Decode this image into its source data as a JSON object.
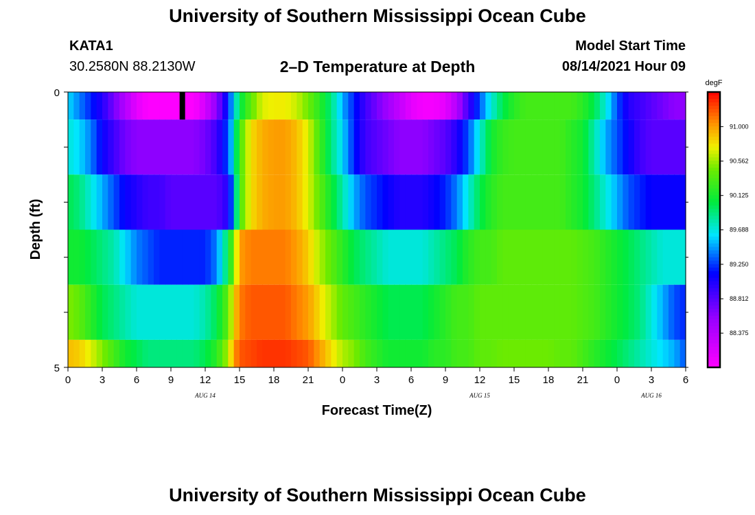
{
  "header": {
    "title": "University of Southern Mississippi Ocean Cube",
    "station_id": "KATA1",
    "coords": "30.2580N  88.2130W",
    "plot_title": "2–D Temperature at Depth",
    "model_start_label": "Model Start Time",
    "model_start_value": "08/14/2021 Hour 09"
  },
  "footer": {
    "title": "University of Southern Mississippi Ocean Cube"
  },
  "chart_data": {
    "type": "heatmap",
    "title": "2–D Temperature at Depth",
    "xlabel": "Forecast Time(Z)",
    "ylabel": "Depth (ft)",
    "xlim": [
      0,
      54
    ],
    "ylim": [
      0,
      5
    ],
    "x_tick_labels": [
      "0",
      "3",
      "6",
      "9",
      "12",
      "15",
      "18",
      "21",
      "0",
      "3",
      "6",
      "9",
      "12",
      "15",
      "18",
      "21",
      "0",
      "3",
      "6"
    ],
    "y_tick_labels": [
      "0",
      "5"
    ],
    "date_labels": [
      {
        "text": "AUG 14",
        "hour": 12
      },
      {
        "text": "AUG 15",
        "hour": 36
      },
      {
        "text": "AUG 16",
        "hour": 51
      }
    ],
    "colorbar": {
      "unit": "degF",
      "ticks": [
        91.0,
        90.562,
        90.125,
        89.688,
        89.25,
        88.812,
        88.375
      ],
      "tick_labels": [
        "91.000",
        "90.562",
        "90.125",
        "89.688",
        "89.250",
        "88.812",
        "88.375"
      ],
      "range": [
        87.94,
        91.44
      ]
    },
    "missing_marker": {
      "hour": 10,
      "layer": 0
    },
    "layers": [
      {
        "depth_range": [
          0,
          0.5
        ],
        "x": [
          0,
          1,
          2,
          3,
          4,
          5,
          6,
          7,
          8,
          9,
          10,
          11,
          12,
          13,
          14,
          14.5,
          15,
          16,
          17,
          18,
          19,
          20,
          21,
          22,
          23,
          24,
          25,
          26,
          27,
          28,
          29,
          30,
          31,
          32,
          33,
          34,
          35,
          36,
          37,
          38,
          39,
          40,
          41,
          42,
          43,
          44,
          45,
          46,
          47,
          48,
          49,
          50,
          51,
          52,
          53,
          54
        ],
        "values": [
          89.6,
          89.4,
          89.2,
          89.0,
          88.7,
          88.4,
          88.1,
          87.95,
          87.95,
          87.95,
          87.95,
          87.95,
          88.2,
          88.6,
          89.2,
          89.6,
          90.0,
          90.4,
          90.7,
          90.75,
          90.75,
          90.65,
          90.45,
          90.2,
          89.9,
          89.5,
          89.2,
          88.9,
          88.7,
          88.5,
          88.3,
          88.1,
          88.0,
          88.0,
          88.1,
          88.4,
          88.9,
          89.3,
          89.7,
          90.0,
          90.2,
          90.3,
          90.3,
          90.3,
          90.3,
          90.3,
          90.2,
          90.0,
          89.7,
          89.3,
          89.0,
          88.9,
          88.8,
          88.7,
          88.6,
          88.6
        ]
      },
      {
        "depth_range": [
          0.5,
          1.5
        ],
        "x": [
          0,
          1,
          2,
          3,
          4,
          5,
          6,
          7,
          8,
          9,
          10,
          11,
          12,
          13,
          14,
          14.5,
          15,
          16,
          17,
          18,
          19,
          20,
          21,
          22,
          23,
          24,
          25,
          26,
          27,
          28,
          29,
          30,
          31,
          32,
          33,
          34,
          35,
          36,
          37,
          38,
          39,
          40,
          41,
          42,
          43,
          44,
          45,
          46,
          47,
          48,
          49,
          50,
          51,
          52,
          53,
          54
        ],
        "values": [
          89.7,
          89.6,
          89.4,
          89.1,
          88.9,
          88.7,
          88.6,
          88.6,
          88.6,
          88.6,
          88.6,
          88.6,
          88.7,
          88.9,
          89.3,
          89.7,
          90.3,
          90.8,
          90.95,
          91.0,
          91.0,
          90.9,
          90.7,
          90.3,
          89.9,
          89.6,
          89.2,
          88.9,
          88.8,
          88.7,
          88.6,
          88.6,
          88.6,
          88.7,
          88.8,
          89.0,
          89.3,
          89.7,
          90.1,
          90.25,
          90.3,
          90.3,
          90.3,
          90.3,
          90.3,
          90.2,
          90.1,
          89.8,
          89.5,
          89.3,
          89.1,
          88.9,
          88.8,
          88.8,
          88.8,
          88.8
        ]
      },
      {
        "depth_range": [
          1.5,
          2.5
        ],
        "x": [
          0,
          1,
          2,
          3,
          4,
          5,
          6,
          7,
          8,
          9,
          10,
          11,
          12,
          13,
          14,
          14.5,
          15,
          16,
          17,
          18,
          19,
          20,
          21,
          22,
          23,
          24,
          25,
          26,
          27,
          28,
          29,
          30,
          31,
          32,
          33,
          34,
          35,
          36,
          37,
          38,
          39,
          40,
          41,
          42,
          43,
          44,
          45,
          46,
          47,
          48,
          49,
          50,
          51,
          52,
          53,
          54
        ],
        "values": [
          90.0,
          89.9,
          89.7,
          89.5,
          89.3,
          89.1,
          89.0,
          88.9,
          88.9,
          88.8,
          88.8,
          88.8,
          88.8,
          88.8,
          89.0,
          89.5,
          90.3,
          90.8,
          90.95,
          91.0,
          91.0,
          90.9,
          90.7,
          90.4,
          90.1,
          89.8,
          89.5,
          89.3,
          89.2,
          89.1,
          89.0,
          89.0,
          89.0,
          89.1,
          89.2,
          89.4,
          89.7,
          90.0,
          90.2,
          90.3,
          90.3,
          90.3,
          90.3,
          90.3,
          90.3,
          90.2,
          90.1,
          89.9,
          89.7,
          89.5,
          89.3,
          89.2,
          89.1,
          89.1,
          89.1,
          89.1
        ]
      },
      {
        "depth_range": [
          2.5,
          3.5
        ],
        "x": [
          0,
          1,
          2,
          3,
          4,
          5,
          6,
          7,
          8,
          9,
          10,
          11,
          12,
          13,
          14,
          14.5,
          15,
          16,
          17,
          18,
          19,
          20,
          21,
          22,
          23,
          24,
          25,
          26,
          27,
          28,
          29,
          30,
          31,
          32,
          33,
          34,
          35,
          36,
          37,
          38,
          39,
          40,
          41,
          42,
          43,
          44,
          45,
          46,
          47,
          48,
          49,
          50,
          51,
          52,
          53,
          54
        ],
        "values": [
          90.1,
          90.1,
          90.0,
          89.9,
          89.8,
          89.6,
          89.4,
          89.3,
          89.2,
          89.2,
          89.2,
          89.2,
          89.2,
          89.4,
          90.0,
          90.5,
          91.0,
          91.1,
          91.1,
          91.1,
          91.1,
          91.0,
          90.85,
          90.6,
          90.4,
          90.2,
          90.0,
          89.9,
          89.8,
          89.7,
          89.7,
          89.7,
          89.7,
          89.8,
          89.9,
          90.0,
          90.2,
          90.3,
          90.3,
          90.4,
          90.4,
          90.4,
          90.4,
          90.4,
          90.4,
          90.4,
          90.35,
          90.3,
          90.2,
          90.1,
          90.0,
          89.9,
          89.8,
          89.7,
          89.7,
          89.7
        ]
      },
      {
        "depth_range": [
          3.5,
          4.5
        ],
        "x": [
          0,
          1,
          2,
          3,
          4,
          5,
          6,
          7,
          8,
          9,
          10,
          11,
          12,
          13,
          14,
          14.5,
          15,
          16,
          17,
          18,
          19,
          20,
          21,
          22,
          23,
          24,
          25,
          26,
          27,
          28,
          29,
          30,
          31,
          32,
          33,
          34,
          35,
          36,
          37,
          38,
          39,
          40,
          41,
          42,
          43,
          44,
          45,
          46,
          47,
          48,
          49,
          50,
          51,
          52,
          53,
          54
        ],
        "values": [
          90.5,
          90.4,
          90.2,
          90.0,
          89.9,
          89.8,
          89.7,
          89.7,
          89.7,
          89.7,
          89.7,
          89.7,
          89.8,
          90.0,
          90.4,
          90.8,
          91.1,
          91.2,
          91.2,
          91.2,
          91.2,
          91.1,
          91.0,
          90.8,
          90.6,
          90.4,
          90.3,
          90.2,
          90.1,
          90.0,
          90.0,
          90.0,
          90.0,
          90.1,
          90.2,
          90.3,
          90.3,
          90.4,
          90.4,
          90.4,
          90.4,
          90.4,
          90.4,
          90.4,
          90.4,
          90.4,
          90.35,
          90.3,
          90.2,
          90.1,
          90.0,
          89.9,
          89.7,
          89.5,
          89.3,
          89.2
        ]
      },
      {
        "depth_range": [
          4.5,
          5
        ],
        "x": [
          0,
          1,
          2,
          3,
          4,
          5,
          6,
          7,
          8,
          9,
          10,
          11,
          12,
          13,
          14,
          14.5,
          15,
          16,
          17,
          18,
          19,
          20,
          21,
          22,
          23,
          24,
          25,
          26,
          27,
          28,
          29,
          30,
          31,
          32,
          33,
          34,
          35,
          36,
          37,
          38,
          39,
          40,
          41,
          42,
          43,
          44,
          45,
          46,
          47,
          48,
          49,
          50,
          51,
          52,
          53,
          54
        ],
        "values": [
          90.9,
          90.85,
          90.7,
          90.5,
          90.3,
          90.1,
          90.0,
          89.9,
          89.9,
          89.9,
          89.9,
          89.9,
          90.0,
          90.2,
          90.6,
          91.0,
          91.2,
          91.25,
          91.3,
          91.3,
          91.3,
          91.25,
          91.2,
          91.0,
          90.8,
          90.6,
          90.5,
          90.3,
          90.2,
          90.1,
          90.1,
          90.1,
          90.1,
          90.2,
          90.2,
          90.3,
          90.3,
          90.4,
          90.4,
          90.45,
          90.45,
          90.45,
          90.45,
          90.45,
          90.4,
          90.4,
          90.3,
          90.2,
          90.1,
          90.0,
          89.9,
          89.8,
          89.7,
          89.6,
          89.5,
          89.3
        ]
      }
    ]
  }
}
